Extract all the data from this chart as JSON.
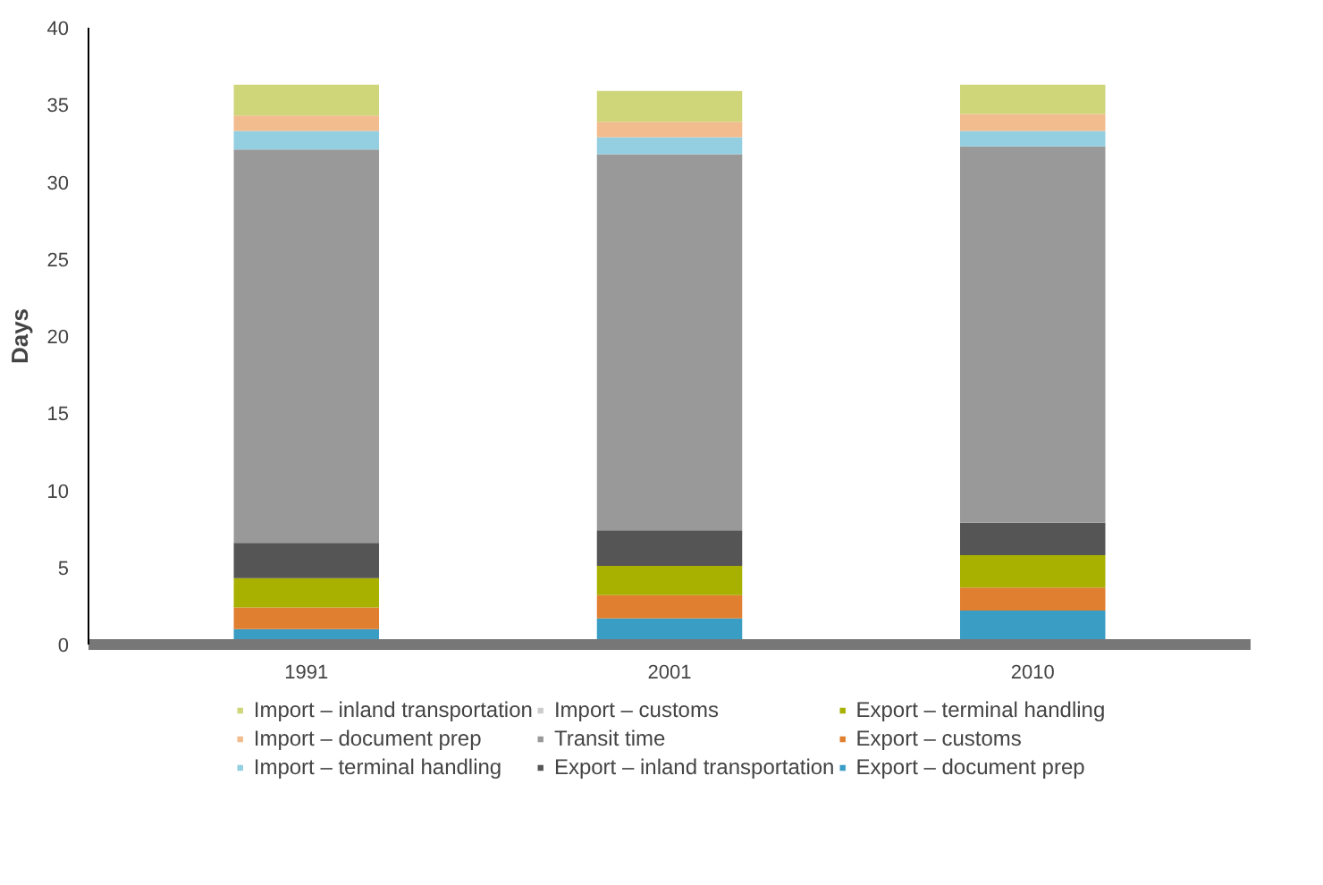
{
  "chart_data": {
    "type": "bar",
    "stacked": true,
    "ylabel": "Days",
    "categories": [
      "1991",
      "2001",
      "2010"
    ],
    "ylim": [
      0,
      40
    ],
    "yticks": [
      0,
      5,
      10,
      15,
      20,
      25,
      30,
      35,
      40
    ],
    "grid": false,
    "legend": "bottom",
    "series": [
      {
        "name": "Export – document prep",
        "color": "#3a9dc4",
        "values": [
          1.0,
          1.7,
          2.2
        ]
      },
      {
        "name": "Export – customs",
        "color": "#e07f30",
        "values": [
          1.4,
          1.5,
          1.5
        ]
      },
      {
        "name": "Export – terminal handling",
        "color": "#a8b000",
        "values": [
          1.9,
          1.9,
          2.1
        ]
      },
      {
        "name": "Export – inland transportation",
        "color": "#555555",
        "values": [
          2.3,
          2.3,
          2.1
        ]
      },
      {
        "name": "Transit time",
        "color": "#999999",
        "values": [
          25.5,
          24.4,
          24.4
        ]
      },
      {
        "name": "Import – customs",
        "color": "#cccccc",
        "values": [
          0,
          0,
          0
        ]
      },
      {
        "name": "Import – terminal handling",
        "color": "#93cfe0",
        "values": [
          1.2,
          1.1,
          1.0
        ]
      },
      {
        "name": "Import – document prep",
        "color": "#f2bc8e",
        "values": [
          1.0,
          1.0,
          1.1
        ]
      },
      {
        "name": "Import – inland transportation",
        "color": "#cfd67a",
        "values": [
          2.0,
          2.0,
          1.9
        ]
      }
    ]
  }
}
